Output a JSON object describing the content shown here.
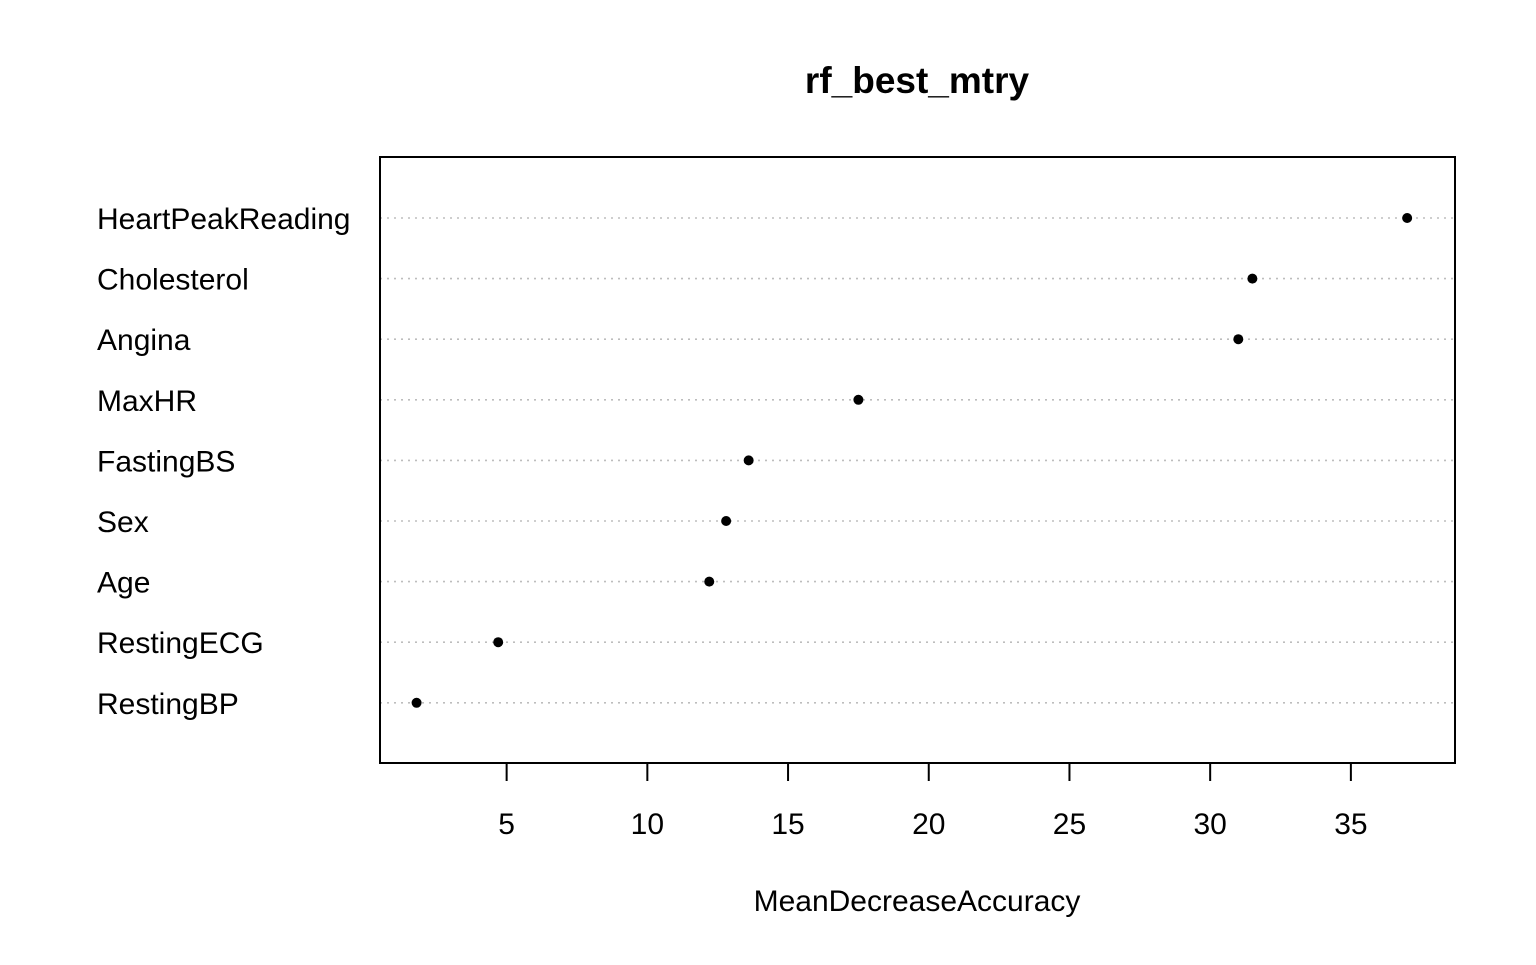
{
  "chart_data": {
    "type": "scatter",
    "title": "rf_best_mtry",
    "xlabel": "MeanDecreaseAccuracy",
    "ylabel": "",
    "categories": [
      "HeartPeakReading",
      "Cholesterol",
      "Angina",
      "MaxHR",
      "FastingBS",
      "Sex",
      "Age",
      "RestingECG",
      "RestingBP"
    ],
    "values": [
      37.0,
      31.5,
      31.0,
      17.5,
      13.6,
      12.8,
      12.2,
      4.7,
      1.8
    ],
    "xticks": [
      5,
      10,
      15,
      20,
      25,
      30,
      35
    ],
    "xlim": [
      0.5,
      38.7
    ],
    "grid": "dotted horizontal guide lines per category",
    "point_color": "#000000",
    "grid_color": "#bdbdbd"
  }
}
